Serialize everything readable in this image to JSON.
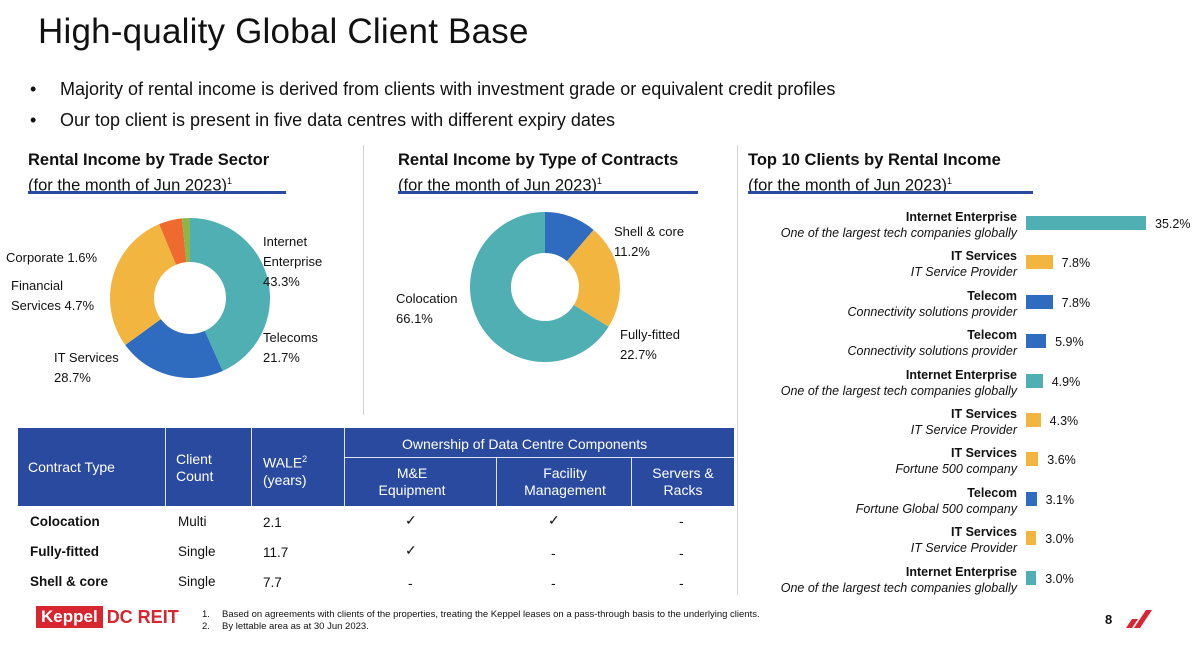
{
  "title": "High-quality Global Client Base",
  "bullets": [
    "Majority of rental income is derived from clients with investment grade or equivalent credit profiles",
    "Our top client is present in five data centres with different expiry dates"
  ],
  "colors": {
    "teal": "#4fafb3",
    "blue": "#2f6bbe",
    "yellow": "#f2b540",
    "orange": "#ee6a2e",
    "green": "#8ab64d",
    "navy": "#2a4aa0",
    "brand_red": "#d7262f"
  },
  "sections": {
    "trade": {
      "title": "Rental Income by Trade Sector",
      "subtitle": "(for the month of Jun 2023)",
      "sup": "1"
    },
    "contracts": {
      "title": "Rental Income by Type of Contracts",
      "subtitle": "(for the month of Jun 2023)",
      "sup": "1"
    },
    "top10": {
      "title": "Top 10 Clients by Rental Income",
      "subtitle": "(for the month of Jun 2023)",
      "sup": "1"
    }
  },
  "chart_data": [
    {
      "type": "pie",
      "title": "Rental Income by Trade Sector",
      "labels": [
        "Internet Enterprise",
        "Telecoms",
        "IT Services",
        "Financial Services",
        "Corporate"
      ],
      "values": [
        43.3,
        21.7,
        28.7,
        4.7,
        1.6
      ],
      "value_labels": [
        "43.3%",
        "21.7%",
        "28.7%",
        "4.7%",
        "1.6%"
      ],
      "colors": [
        "#4fafb3",
        "#2f6bbe",
        "#f2b540",
        "#ee6a2e",
        "#8ab64d"
      ]
    },
    {
      "type": "pie",
      "title": "Rental Income by Type of Contracts",
      "labels": [
        "Shell & core",
        "Fully-fitted",
        "Colocation"
      ],
      "values": [
        11.2,
        22.7,
        66.1
      ],
      "value_labels": [
        "11.2%",
        "22.7%",
        "66.1%"
      ],
      "colors": [
        "#2f6bbe",
        "#f2b540",
        "#4fafb3"
      ]
    },
    {
      "type": "bar",
      "title": "Top 10 Clients by Rental Income",
      "orientation": "horizontal",
      "categories": [
        "Internet Enterprise",
        "IT Services",
        "Telecom",
        "Telecom",
        "Internet Enterprise",
        "IT Services",
        "IT Services",
        "Telecom",
        "IT Services",
        "Internet Enterprise"
      ],
      "descriptions": [
        "One of the largest tech companies globally",
        "IT Service Provider",
        "Connectivity solutions provider",
        "Connectivity solutions provider",
        "One of the largest tech companies globally",
        "IT Service Provider",
        "Fortune 500 company",
        "Fortune Global 500 company",
        "IT Service Provider",
        "One of the largest tech companies globally"
      ],
      "values": [
        35.2,
        7.8,
        7.8,
        5.9,
        4.9,
        4.3,
        3.6,
        3.1,
        3.0,
        3.0
      ],
      "value_labels": [
        "35.2%",
        "7.8%",
        "7.8%",
        "5.9%",
        "4.9%",
        "4.3%",
        "3.6%",
        "3.1%",
        "3.0%",
        "3.0%"
      ],
      "colors": [
        "#4fafb3",
        "#f2b540",
        "#2f6bbe",
        "#2f6bbe",
        "#4fafb3",
        "#f2b540",
        "#f2b540",
        "#2f6bbe",
        "#f2b540",
        "#4fafb3"
      ]
    }
  ],
  "pie_labels": {
    "trade": {
      "internet_1": "Internet",
      "internet_2": "Enterprise",
      "internet_v": "43.3%",
      "telecoms": "Telecoms",
      "telecoms_v": "21.7%",
      "it": "IT Services",
      "it_v": "28.7%",
      "fin_1": "Financial",
      "fin_2": "Services 4.7%",
      "corp": "Corporate 1.6%"
    },
    "contracts": {
      "shell": "Shell & core",
      "shell_v": "11.2%",
      "fully": "Fully-fitted",
      "fully_v": "22.7%",
      "colo": "Colocation",
      "colo_v": "66.1%"
    }
  },
  "table": {
    "headers": {
      "contract_type": "Contract Type",
      "client_count_1": "Client",
      "client_count_2": "Count",
      "wale_1": "WALE",
      "wale_sup": "2",
      "wale_2": "(years)",
      "ownership": "Ownership of Data Centre Components",
      "me_1": "M&E",
      "me_2": "Equipment",
      "fm_1": "Facility",
      "fm_2": "Management",
      "sr_1": "Servers &",
      "sr_2": "Racks"
    },
    "rows": [
      {
        "type": "Colocation",
        "count": "Multi",
        "wale": "2.1",
        "me": "✓",
        "fm": "✓",
        "sr": "-"
      },
      {
        "type": "Fully-fitted",
        "count": "Single",
        "wale": "11.7",
        "me": "✓",
        "fm": "-",
        "sr": "-"
      },
      {
        "type": "Shell & core",
        "count": "Single",
        "wale": "7.7",
        "me": "-",
        "fm": "-",
        "sr": "-"
      }
    ]
  },
  "footer": {
    "logo_box": "Keppel",
    "logo_text": "DC REIT",
    "notes": [
      {
        "num": "1.",
        "text": "Based on agreements with clients of the properties, treating the Keppel leases on a pass-through basis to the underlying clients."
      },
      {
        "num": "2.",
        "text": "By lettable area as at 30 Jun 2023."
      }
    ],
    "page_number": "8"
  }
}
